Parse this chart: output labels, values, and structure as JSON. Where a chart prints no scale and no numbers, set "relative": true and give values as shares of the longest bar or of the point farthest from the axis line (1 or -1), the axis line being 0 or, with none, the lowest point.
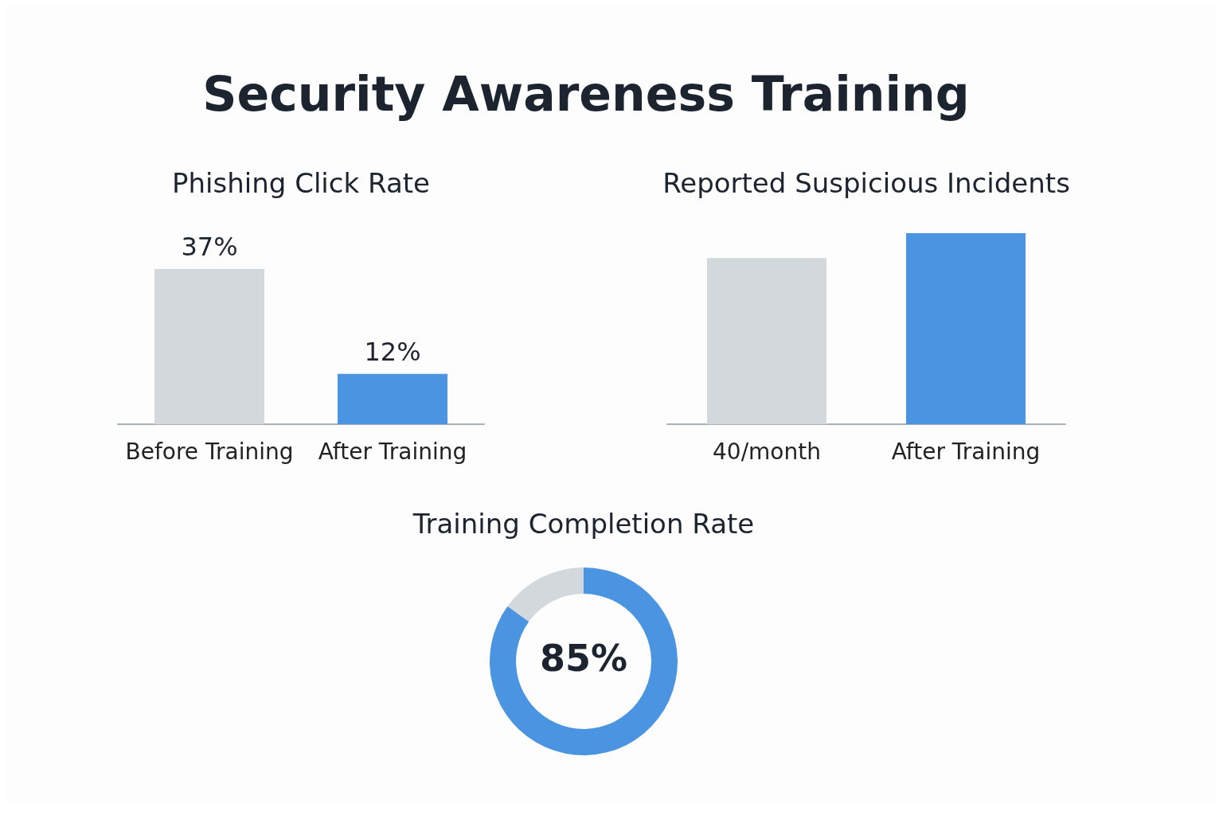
{
  "chart_data": [
    {
      "type": "other",
      "title": "Security Awareness Training"
    },
    {
      "type": "bar",
      "title": "Phishing Click Rate",
      "categories": [
        "Before Training",
        "After Training"
      ],
      "values": [
        37,
        12
      ],
      "colors": [
        "#d3d8dc",
        "#4a94e2"
      ],
      "value_labels": [
        "37%",
        "12%"
      ]
    },
    {
      "type": "bar",
      "title": "Reported Suspicious Incidents",
      "categories": [
        "40/month",
        "After Training"
      ],
      "values": [
        0.87,
        1
      ],
      "colors": [
        "#d3d8dc",
        "#4a94e2"
      ],
      "relative": true
    },
    {
      "type": "donut",
      "title": "Training Completion Rate",
      "categories": [
        null,
        null
      ],
      "values": [
        85,
        15
      ],
      "colors": [
        "#4a94e2",
        "#d3d8dc"
      ],
      "annotations": [
        "85%"
      ]
    }
  ]
}
